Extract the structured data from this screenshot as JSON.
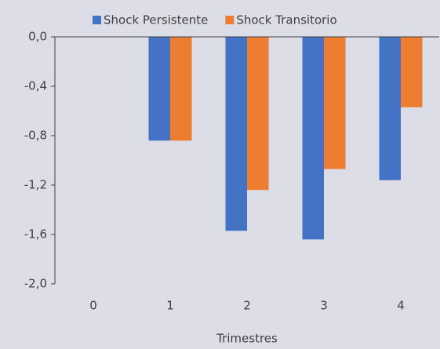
{
  "chart_data": {
    "type": "bar",
    "categories": [
      "0",
      "1",
      "2",
      "3",
      "4"
    ],
    "series": [
      {
        "name": "Shock Persistente",
        "color": "#4472c4",
        "values": [
          0,
          -0.84,
          -1.57,
          -1.64,
          -1.16
        ]
      },
      {
        "name": "Shock Transitorio",
        "color": "#ed7d31",
        "values": [
          0,
          -0.84,
          -1.24,
          -1.07,
          -0.57
        ]
      }
    ],
    "xlabel": "Trimestres",
    "ylim": [
      -2.0,
      0.0
    ],
    "yticks": [
      {
        "value": 0.0,
        "label": "0,0"
      },
      {
        "value": -0.4,
        "label": "-0,4"
      },
      {
        "value": -0.8,
        "label": "-0,8"
      },
      {
        "value": -1.2,
        "label": "-1,2"
      },
      {
        "value": -1.6,
        "label": "-1,6"
      },
      {
        "value": -2.0,
        "label": "-2,0"
      }
    ],
    "legend": "top"
  }
}
